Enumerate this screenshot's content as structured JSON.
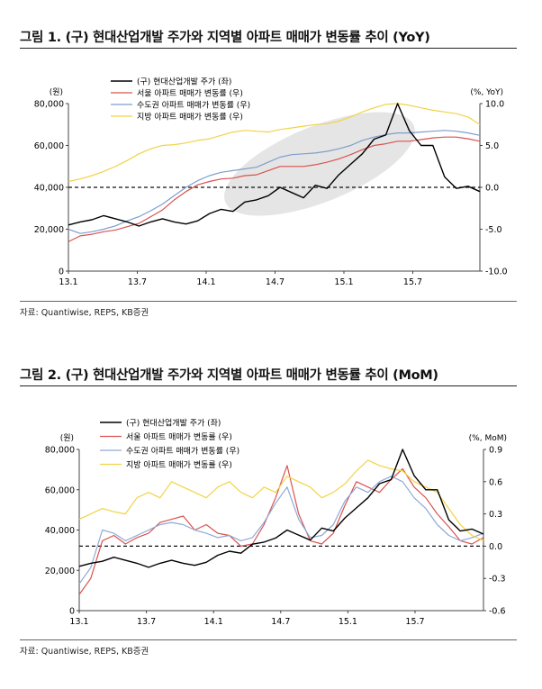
{
  "figures": [
    {
      "title": "그림 1. (구) 현대산업개발 주가와 지역별 아파트 매매가 변동률 추이 (YoY)",
      "source": "자료: Quantiwise, REPS, KB증권"
    },
    {
      "title": "그림 2. (구) 현대산업개발 주가와 지역별 아파트 매매가 변동률 추이 (MoM)",
      "source": "자료: Quantiwise, REPS, KB증권"
    }
  ],
  "chart_data": [
    {
      "type": "line",
      "left_unit": "(원)",
      "right_unit": "(%, YoY)",
      "xticks": [
        "13.1",
        "13.7",
        "14.1",
        "14.7",
        "15.1",
        "15.7"
      ],
      "yticks_left": [
        "80,000",
        "60,000",
        "40,000",
        "20,000",
        "0"
      ],
      "yticks_right": [
        "10.0",
        "5.0",
        "0.0",
        "-5.0",
        "-10.0"
      ],
      "ylim_left": [
        0,
        80000
      ],
      "ylim_right": [
        -10,
        10
      ],
      "xlim": [
        0,
        35
      ],
      "reference_line_right": 0,
      "annotation": "shaded ellipse highlighting 14.1–15.6 period",
      "series": [
        {
          "name": "(구) 현대산업개발 주가 (좌)",
          "axis": "left",
          "color": "#000000",
          "x": [
            0,
            1,
            2,
            3,
            4,
            5,
            6,
            7,
            8,
            9,
            10,
            11,
            12,
            13,
            14,
            15,
            16,
            17,
            18,
            19,
            20,
            21,
            22,
            23,
            24,
            25,
            26,
            27,
            28,
            29,
            30,
            31,
            32,
            33,
            34,
            35
          ],
          "values": [
            22000,
            23500,
            24500,
            26500,
            25000,
            23500,
            21500,
            23500,
            25000,
            23500,
            22500,
            24000,
            27500,
            29500,
            28500,
            33000,
            34000,
            36000,
            40000,
            37500,
            35000,
            41000,
            39500,
            46000,
            51000,
            56000,
            63000,
            65000,
            80000,
            67000,
            60000,
            60000,
            45000,
            39500,
            40500,
            38000
          ]
        },
        {
          "name": "서울 아파트 매매가 변동률 (우)",
          "axis": "right",
          "color": "#d9534f",
          "x": [
            0,
            1,
            2,
            3,
            4,
            5,
            6,
            7,
            8,
            9,
            10,
            11,
            12,
            13,
            14,
            15,
            16,
            17,
            18,
            19,
            20,
            21,
            22,
            23,
            24,
            25,
            26,
            27,
            28,
            29,
            30,
            31,
            32,
            33,
            34,
            35
          ],
          "values": [
            -6.5,
            -5.8,
            -5.6,
            -5.3,
            -5.1,
            -4.7,
            -4.3,
            -3.5,
            -2.7,
            -1.5,
            -0.5,
            0.3,
            0.7,
            1.0,
            1.1,
            1.4,
            1.5,
            2.0,
            2.5,
            2.5,
            2.5,
            2.7,
            3.0,
            3.4,
            3.9,
            4.5,
            5.0,
            5.2,
            5.5,
            5.5,
            5.7,
            5.9,
            6.0,
            6.0,
            5.8,
            5.5
          ]
        },
        {
          "name": "수도권 아파트 매매가 변동률 (우)",
          "axis": "right",
          "color": "#7f9dcc",
          "x": [
            0,
            1,
            2,
            3,
            4,
            5,
            6,
            7,
            8,
            9,
            10,
            11,
            12,
            13,
            14,
            15,
            16,
            17,
            18,
            19,
            20,
            21,
            22,
            23,
            24,
            25,
            26,
            27,
            28,
            29,
            30,
            31,
            32,
            33,
            34,
            35
          ],
          "values": [
            -5.0,
            -5.5,
            -5.3,
            -5.0,
            -4.6,
            -4.0,
            -3.5,
            -2.8,
            -2.0,
            -1.0,
            0.0,
            0.8,
            1.4,
            1.8,
            2.0,
            2.2,
            2.4,
            3.0,
            3.6,
            3.9,
            4.0,
            4.1,
            4.3,
            4.6,
            5.0,
            5.6,
            6.0,
            6.3,
            6.5,
            6.5,
            6.6,
            6.7,
            6.8,
            6.7,
            6.5,
            6.2
          ]
        },
        {
          "name": "지방 아파트 매매가 변동률 (우)",
          "axis": "right",
          "color": "#f2d346",
          "x": [
            0,
            1,
            2,
            3,
            4,
            5,
            6,
            7,
            8,
            9,
            10,
            11,
            12,
            13,
            14,
            15,
            16,
            17,
            18,
            19,
            20,
            21,
            22,
            23,
            24,
            25,
            26,
            27,
            28,
            29,
            30,
            31,
            32,
            33,
            34,
            35
          ],
          "values": [
            0.7,
            1.0,
            1.4,
            1.9,
            2.5,
            3.2,
            4.0,
            4.6,
            5.0,
            5.1,
            5.3,
            5.6,
            5.8,
            6.2,
            6.6,
            6.8,
            6.7,
            6.6,
            6.9,
            7.1,
            7.3,
            7.5,
            7.6,
            7.9,
            8.4,
            9.0,
            9.5,
            9.9,
            10.0,
            9.8,
            9.5,
            9.2,
            9.0,
            8.8,
            8.4,
            7.5
          ]
        }
      ]
    },
    {
      "type": "line",
      "left_unit": "(원)",
      "right_unit": "(%, MoM)",
      "xticks": [
        "13.1",
        "13.7",
        "14.1",
        "14.7",
        "15.1",
        "15.7"
      ],
      "yticks_left": [
        "80,000",
        "60,000",
        "40,000",
        "20,000",
        "0"
      ],
      "yticks_right": [
        "0.9",
        "0.6",
        "0.3",
        "0.0",
        "-0.3",
        "-0.6"
      ],
      "ylim_left": [
        0,
        80000
      ],
      "ylim_right": [
        -0.6,
        0.9
      ],
      "xlim": [
        0,
        35
      ],
      "reference_line_right": 0,
      "series": [
        {
          "name": "(구) 현대산업개발 주가 (좌)",
          "axis": "left",
          "color": "#000000",
          "x": [
            0,
            1,
            2,
            3,
            4,
            5,
            6,
            7,
            8,
            9,
            10,
            11,
            12,
            13,
            14,
            15,
            16,
            17,
            18,
            19,
            20,
            21,
            22,
            23,
            24,
            25,
            26,
            27,
            28,
            29,
            30,
            31,
            32,
            33,
            34,
            35
          ],
          "values": [
            22000,
            23500,
            24500,
            26500,
            25000,
            23500,
            21500,
            23500,
            25000,
            23500,
            22500,
            24000,
            27500,
            29500,
            28500,
            33000,
            34000,
            36000,
            40000,
            37500,
            35000,
            41000,
            39500,
            46000,
            51000,
            56000,
            63000,
            65000,
            80000,
            67000,
            60000,
            60000,
            45000,
            39500,
            40500,
            38000
          ]
        },
        {
          "name": "서울 아파트 매매가 변동률 (우)",
          "axis": "right",
          "color": "#d9534f",
          "x": [
            0,
            1,
            2,
            3,
            4,
            5,
            6,
            7,
            8,
            9,
            10,
            11,
            12,
            13,
            14,
            15,
            16,
            17,
            18,
            19,
            20,
            21,
            22,
            23,
            24,
            25,
            26,
            27,
            28,
            29,
            30,
            31,
            32,
            33,
            34,
            35
          ],
          "values": [
            -0.45,
            -0.3,
            0.05,
            0.1,
            0.02,
            0.08,
            0.12,
            0.22,
            0.25,
            0.28,
            0.15,
            0.2,
            0.12,
            0.1,
            0.0,
            0.02,
            0.2,
            0.45,
            0.75,
            0.3,
            0.05,
            0.02,
            0.12,
            0.38,
            0.6,
            0.55,
            0.5,
            0.62,
            0.72,
            0.55,
            0.45,
            0.3,
            0.18,
            0.05,
            0.02,
            0.08
          ]
        },
        {
          "name": "수도권 아파트 매매가 변동률 (우)",
          "axis": "right",
          "color": "#8fa9d6",
          "x": [
            0,
            1,
            2,
            3,
            4,
            5,
            6,
            7,
            8,
            9,
            10,
            11,
            12,
            13,
            14,
            15,
            16,
            17,
            18,
            19,
            20,
            21,
            22,
            23,
            24,
            25,
            26,
            27,
            28,
            29,
            30,
            31,
            32,
            33,
            34,
            35
          ],
          "values": [
            -0.35,
            -0.2,
            0.15,
            0.12,
            0.05,
            0.1,
            0.15,
            0.2,
            0.22,
            0.2,
            0.15,
            0.12,
            0.08,
            0.1,
            0.05,
            0.08,
            0.22,
            0.4,
            0.55,
            0.25,
            0.08,
            0.1,
            0.2,
            0.42,
            0.55,
            0.5,
            0.6,
            0.65,
            0.6,
            0.45,
            0.35,
            0.2,
            0.1,
            0.05,
            0.08,
            0.12
          ]
        },
        {
          "name": "지방 아파트 매매가 변동률 (우)",
          "axis": "right",
          "color": "#f2d346",
          "x": [
            0,
            1,
            2,
            3,
            4,
            5,
            6,
            7,
            8,
            9,
            10,
            11,
            12,
            13,
            14,
            15,
            16,
            17,
            18,
            19,
            20,
            21,
            22,
            23,
            24,
            25,
            26,
            27,
            28,
            29,
            30,
            31,
            32,
            33,
            34,
            35
          ],
          "values": [
            0.25,
            0.3,
            0.35,
            0.32,
            0.3,
            0.45,
            0.5,
            0.45,
            0.6,
            0.55,
            0.5,
            0.45,
            0.55,
            0.6,
            0.5,
            0.45,
            0.55,
            0.5,
            0.65,
            0.6,
            0.55,
            0.45,
            0.5,
            0.58,
            0.7,
            0.8,
            0.75,
            0.72,
            0.7,
            0.6,
            0.55,
            0.5,
            0.35,
            0.2,
            0.1,
            0.05
          ]
        }
      ]
    }
  ]
}
